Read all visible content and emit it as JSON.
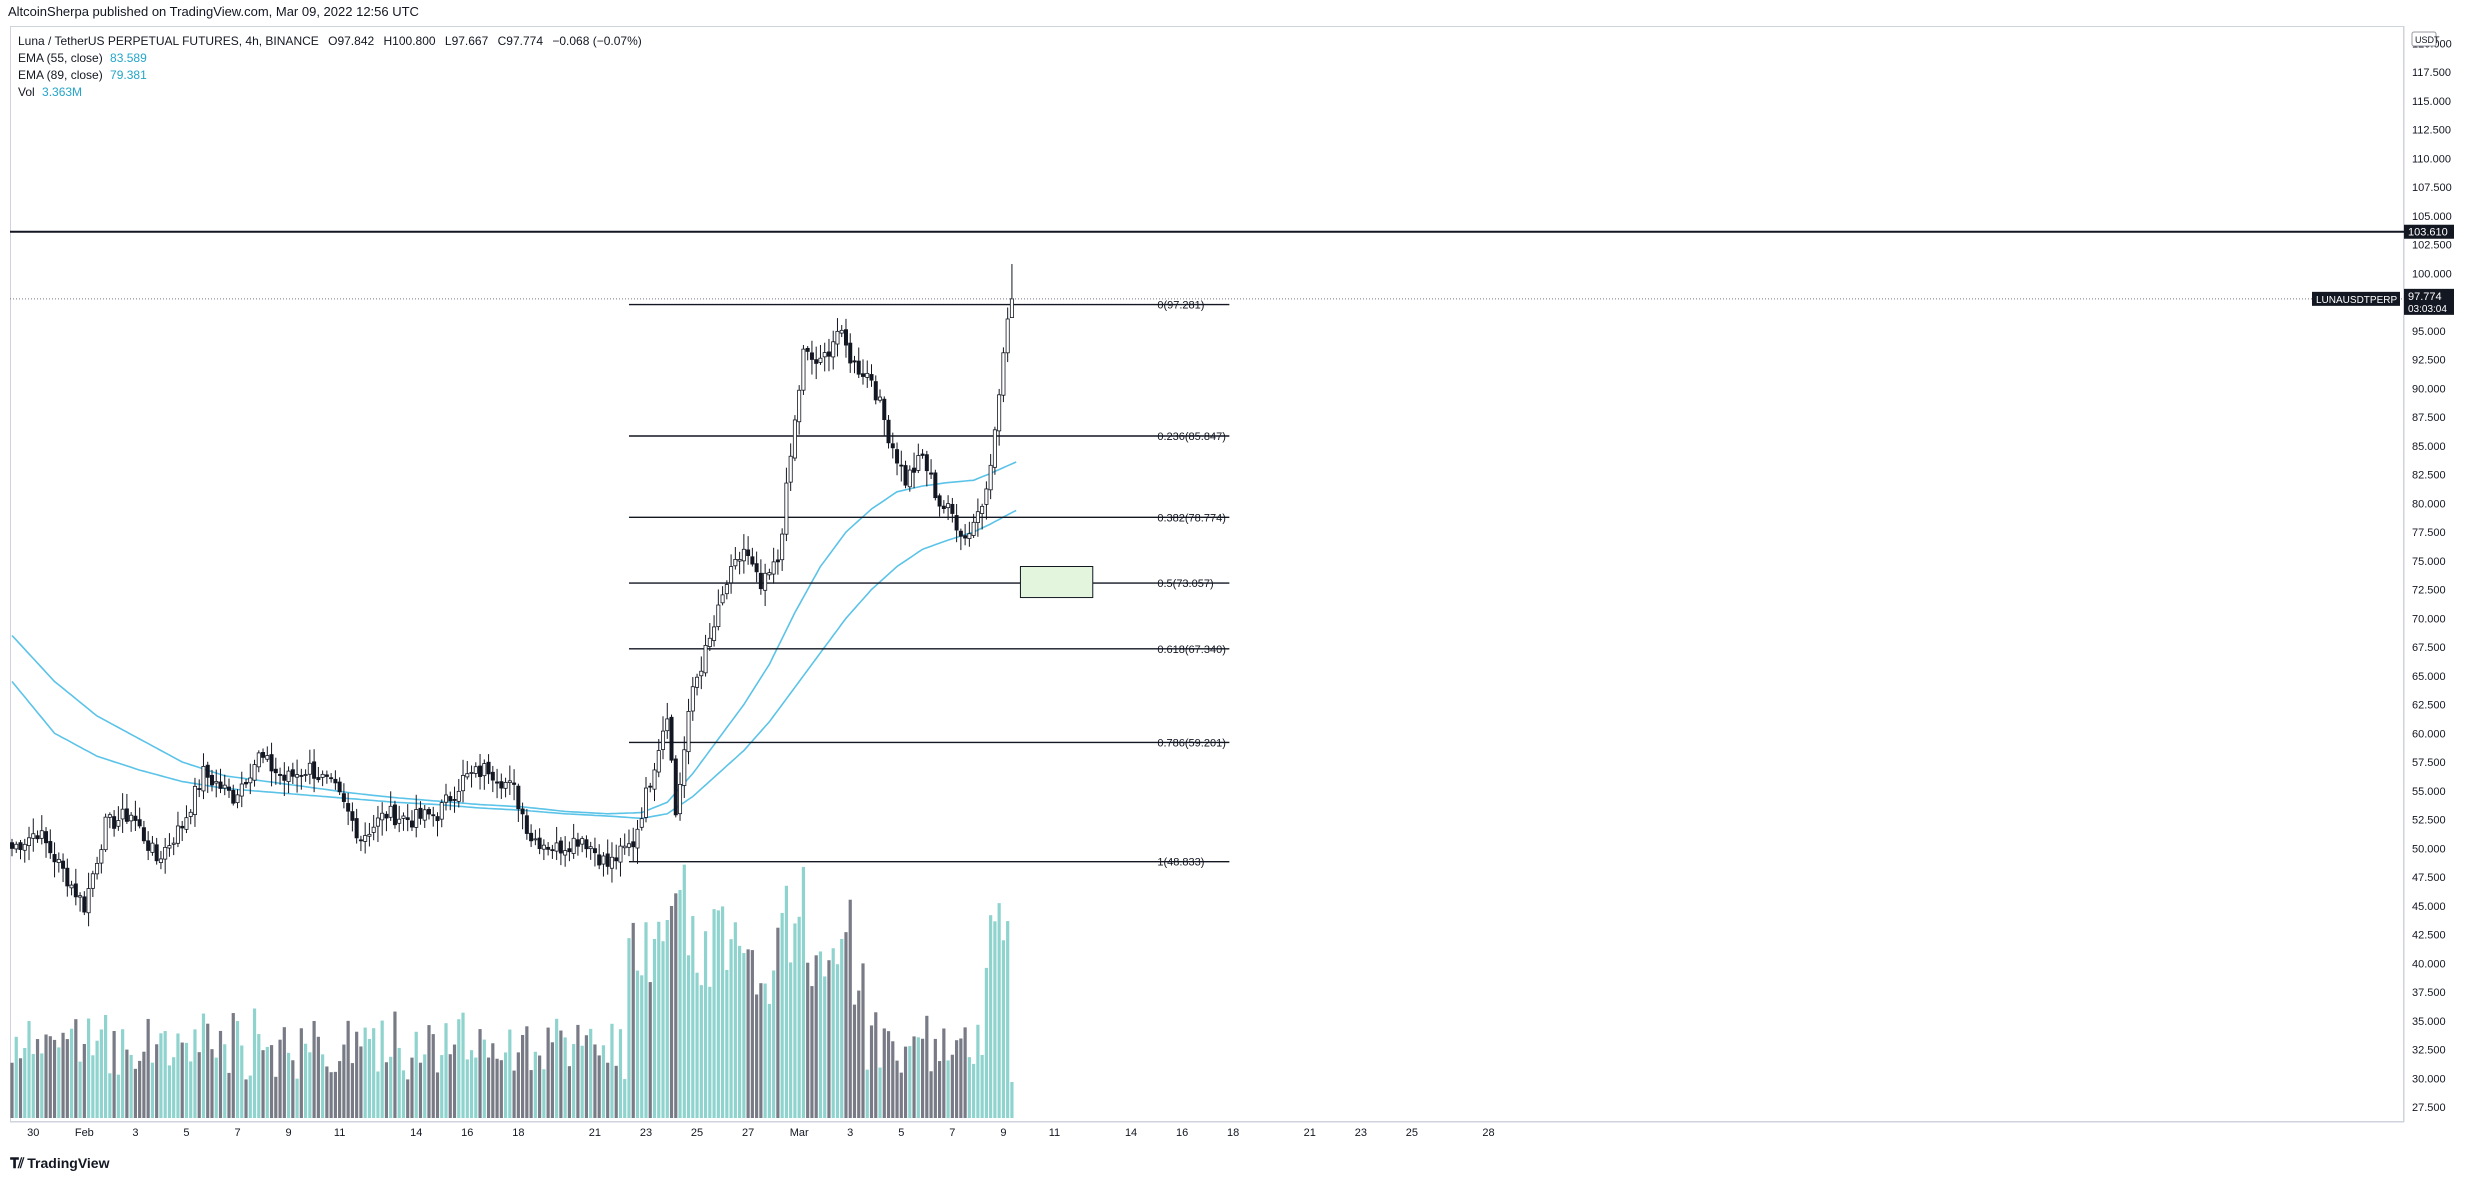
{
  "publisher_line": "AltcoinSherpa published on TradingView.com, Mar 09, 2022 12:56 UTC",
  "footer_brand": "TradingView",
  "legend": {
    "symbol": "Luna / TetherUS PERPETUAL FUTURES, 4h, BINANCE",
    "open": "O97.842",
    "high": "H100.800",
    "low": "L97.667",
    "close": "C97.774",
    "change": "−0.068 (−0.07%)",
    "ema55_label": "EMA (55, close)",
    "ema55_value": "83.589",
    "ema89_label": "EMA (89, close)",
    "ema89_value": "79.381",
    "vol_label": "Vol",
    "vol_value": "3.363M"
  },
  "colors": {
    "up_candle": "#ffffff",
    "down_candle": "#131722",
    "candle_wick": "#131722",
    "volume_up": "#8fd3ce",
    "volume_down": "#787b86",
    "ema": "#5bc3e8",
    "fib_line": "#131722",
    "resistance_line": "#131722",
    "zone_fill": "#e3f5dd",
    "zone_border": "#131722"
  },
  "chart_data": {
    "type": "candlestick",
    "title": "Luna / TetherUS PERPETUAL FUTURES, 4h, BINANCE",
    "ylim": [
      27.5,
      121.5
    ],
    "y_ticks": [
      "27.500",
      "30.000",
      "32.500",
      "35.000",
      "37.500",
      "40.000",
      "42.500",
      "45.000",
      "47.500",
      "50.000",
      "52.500",
      "55.000",
      "57.500",
      "60.000",
      "62.500",
      "65.000",
      "67.500",
      "70.000",
      "72.500",
      "75.000",
      "77.500",
      "80.000",
      "82.500",
      "85.000",
      "87.500",
      "90.000",
      "92.500",
      "95.000",
      "97.500",
      "100.000",
      "102.500",
      "105.000",
      "107.500",
      "110.000",
      "112.500",
      "115.000",
      "117.500",
      "120.000"
    ],
    "unit_label": "USDT",
    "x_ticks": [
      {
        "label": "30",
        "idx": 5
      },
      {
        "label": "Feb",
        "idx": 17
      },
      {
        "label": "3",
        "idx": 29
      },
      {
        "label": "5",
        "idx": 41
      },
      {
        "label": "7",
        "idx": 53
      },
      {
        "label": "9",
        "idx": 65
      },
      {
        "label": "11",
        "idx": 77
      },
      {
        "label": "14",
        "idx": 95
      },
      {
        "label": "16",
        "idx": 107
      },
      {
        "label": "18",
        "idx": 119
      },
      {
        "label": "21",
        "idx": 137
      },
      {
        "label": "23",
        "idx": 149
      },
      {
        "label": "25",
        "idx": 161
      },
      {
        "label": "27",
        "idx": 173
      },
      {
        "label": "Mar",
        "idx": 185
      },
      {
        "label": "3",
        "idx": 197
      },
      {
        "label": "5",
        "idx": 209
      },
      {
        "label": "7",
        "idx": 221
      },
      {
        "label": "9",
        "idx": 233
      },
      {
        "label": "11",
        "idx": 245
      },
      {
        "label": "14",
        "idx": 263
      },
      {
        "label": "16",
        "idx": 275
      },
      {
        "label": "18",
        "idx": 287
      },
      {
        "label": "21",
        "idx": 305
      },
      {
        "label": "23",
        "idx": 317
      },
      {
        "label": "25",
        "idx": 329
      },
      {
        "label": "28",
        "idx": 347
      }
    ],
    "anchor_closes": [
      [
        0,
        50.0
      ],
      [
        6,
        51.5
      ],
      [
        12,
        48.0
      ],
      [
        17,
        45.0
      ],
      [
        22,
        52.0
      ],
      [
        28,
        53.0
      ],
      [
        34,
        49.0
      ],
      [
        40,
        52.0
      ],
      [
        45,
        56.5
      ],
      [
        52,
        54.5
      ],
      [
        58,
        58.0
      ],
      [
        64,
        56.0
      ],
      [
        70,
        57.0
      ],
      [
        76,
        55.0
      ],
      [
        82,
        51.0
      ],
      [
        88,
        53.0
      ],
      [
        94,
        52.5
      ],
      [
        100,
        53.0
      ],
      [
        106,
        56.0
      ],
      [
        112,
        57.0
      ],
      [
        118,
        55.0
      ],
      [
        122,
        51.0
      ],
      [
        128,
        50.0
      ],
      [
        134,
        51.0
      ],
      [
        140,
        48.5
      ],
      [
        146,
        50.5
      ],
      [
        150,
        56.0
      ],
      [
        154,
        62.0
      ],
      [
        156,
        53.0
      ],
      [
        160,
        64.0
      ],
      [
        164,
        68.0
      ],
      [
        168,
        73.0
      ],
      [
        172,
        76.0
      ],
      [
        176,
        72.5
      ],
      [
        180,
        75.0
      ],
      [
        183,
        84.0
      ],
      [
        186,
        93.0
      ],
      [
        190,
        92.0
      ],
      [
        194,
        95.0
      ],
      [
        198,
        92.0
      ],
      [
        202,
        91.0
      ],
      [
        206,
        86.0
      ],
      [
        210,
        82.0
      ],
      [
        214,
        84.0
      ],
      [
        218,
        80.0
      ],
      [
        221,
        79.0
      ],
      [
        224,
        77.0
      ],
      [
        228,
        80.0
      ],
      [
        231,
        86.0
      ],
      [
        233,
        93.0
      ],
      [
        235,
        97.77
      ]
    ],
    "volume_ylim": [
      0,
      32
    ],
    "ema55": [
      [
        0,
        68.5
      ],
      [
        10,
        64.5
      ],
      [
        20,
        61.5
      ],
      [
        30,
        59.5
      ],
      [
        40,
        57.5
      ],
      [
        50,
        56.3
      ],
      [
        60,
        55.8
      ],
      [
        70,
        55.3
      ],
      [
        80,
        54.8
      ],
      [
        90,
        54.4
      ],
      [
        100,
        54.1
      ],
      [
        110,
        53.8
      ],
      [
        120,
        53.6
      ],
      [
        130,
        53.2
      ],
      [
        140,
        53.0
      ],
      [
        148,
        53.1
      ],
      [
        154,
        54.0
      ],
      [
        160,
        56.5
      ],
      [
        166,
        59.5
      ],
      [
        172,
        62.5
      ],
      [
        178,
        66.0
      ],
      [
        184,
        70.5
      ],
      [
        190,
        74.5
      ],
      [
        196,
        77.5
      ],
      [
        202,
        79.5
      ],
      [
        208,
        81.0
      ],
      [
        214,
        81.5
      ],
      [
        220,
        81.8
      ],
      [
        226,
        82.0
      ],
      [
        230,
        82.6
      ],
      [
        233,
        83.1
      ],
      [
        236,
        83.589
      ]
    ],
    "ema89": [
      [
        0,
        64.5
      ],
      [
        10,
        60.0
      ],
      [
        20,
        58.0
      ],
      [
        30,
        56.8
      ],
      [
        40,
        55.8
      ],
      [
        50,
        55.2
      ],
      [
        60,
        54.9
      ],
      [
        70,
        54.6
      ],
      [
        80,
        54.3
      ],
      [
        90,
        54.0
      ],
      [
        100,
        53.8
      ],
      [
        110,
        53.5
      ],
      [
        120,
        53.3
      ],
      [
        130,
        53.0
      ],
      [
        140,
        52.8
      ],
      [
        148,
        52.6
      ],
      [
        154,
        53.0
      ],
      [
        160,
        54.5
      ],
      [
        166,
        56.5
      ],
      [
        172,
        58.5
      ],
      [
        178,
        61.0
      ],
      [
        184,
        64.0
      ],
      [
        190,
        67.0
      ],
      [
        196,
        70.0
      ],
      [
        202,
        72.5
      ],
      [
        208,
        74.5
      ],
      [
        214,
        76.0
      ],
      [
        220,
        76.8
      ],
      [
        226,
        77.5
      ],
      [
        230,
        78.2
      ],
      [
        233,
        78.8
      ],
      [
        236,
        79.381
      ]
    ],
    "fib_levels": [
      {
        "ratio": "0",
        "price": 97.281,
        "label": "0(97.281)"
      },
      {
        "ratio": "0.236",
        "price": 85.847,
        "label": "0.236(85.847)"
      },
      {
        "ratio": "0.382",
        "price": 78.774,
        "label": "0.382(78.774)"
      },
      {
        "ratio": "0.5",
        "price": 73.057,
        "label": "0.5(73.057)"
      },
      {
        "ratio": "0.618",
        "price": 67.34,
        "label": "0.618(67.340)"
      },
      {
        "ratio": "0.786",
        "price": 59.201,
        "label": "0.786(59.201)"
      },
      {
        "ratio": "1",
        "price": 48.833,
        "label": "1(48.833)"
      }
    ],
    "fib_start_idx": 145,
    "fib_end_idx": 272,
    "resistance": {
      "price": 103.61,
      "label": "103.610"
    },
    "last_price": {
      "price": 97.774,
      "label": "97.774",
      "symbol_tag": "LUNAUSDTPERP",
      "countdown": "03:03:04"
    },
    "zone": {
      "x0_idx": 237,
      "x1_idx": 254,
      "y_top": 74.5,
      "y_bottom": 71.8
    }
  }
}
